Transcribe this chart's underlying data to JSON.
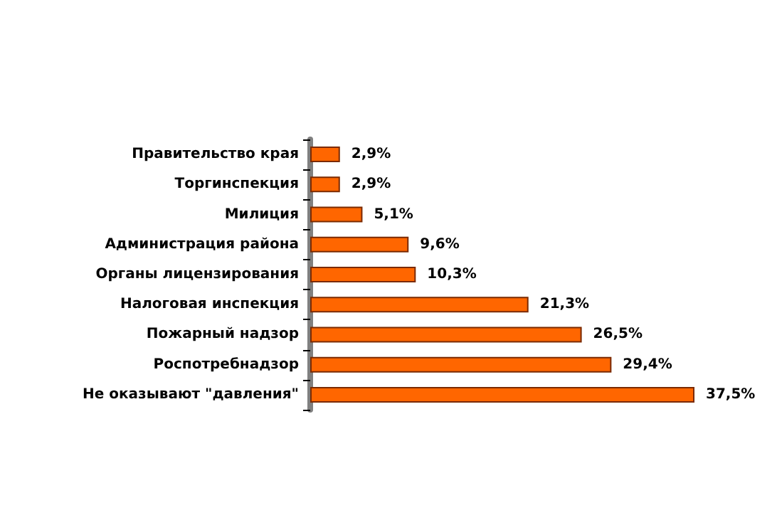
{
  "chart_data": {
    "type": "bar",
    "orientation": "horizontal",
    "categories": [
      "Правительство края",
      "Торгинспекция",
      "Милиция",
      "Администрация района",
      "Органы лицензирования",
      "Налоговая инспекция",
      "Пожарный надзор",
      "Роспотребнадзор",
      "Не оказывают \"давления\""
    ],
    "values": [
      2.9,
      2.9,
      5.1,
      9.6,
      10.3,
      21.3,
      26.5,
      29.4,
      37.5
    ],
    "value_labels": [
      "2,9%",
      "2,9%",
      "5,1%",
      "9,6%",
      "10,3%",
      "21,3%",
      "26,5%",
      "29,4%",
      "37,5%"
    ],
    "color": "#ff6600",
    "tick_labels": "y"
  }
}
